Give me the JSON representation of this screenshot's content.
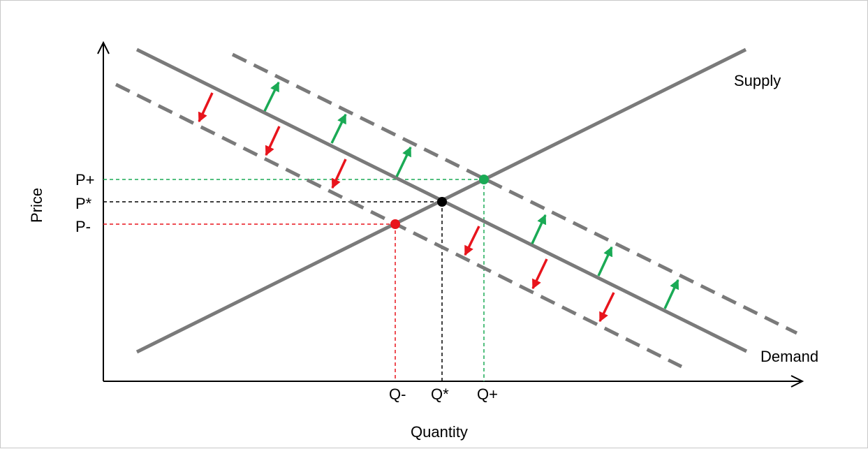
{
  "axes": {
    "x_label": "Quantity",
    "y_label": "Price"
  },
  "curves": {
    "supply_label": "Supply",
    "demand_label": "Demand"
  },
  "price_ticks": {
    "p_plus": "P+",
    "p_star": "P*",
    "p_minus": "P-"
  },
  "quantity_ticks": {
    "q_minus": "Q-",
    "q_star": "Q*",
    "q_plus": "Q+"
  },
  "colors": {
    "curve": "#7a7a7a",
    "increase": "#1aaa55",
    "decrease": "#e8141c",
    "equilibrium": "#000000"
  }
}
